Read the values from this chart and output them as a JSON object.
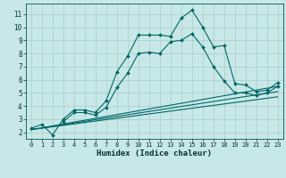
{
  "xlabel": "Humidex (Indice chaleur)",
  "bg_color": "#c8e8e8",
  "grid_color": "#aacccc",
  "line_color": "#006666",
  "xlim": [
    -0.5,
    23.5
  ],
  "ylim": [
    1.5,
    11.8
  ],
  "xticks": [
    0,
    1,
    2,
    3,
    4,
    5,
    6,
    7,
    8,
    9,
    10,
    11,
    12,
    13,
    14,
    15,
    16,
    17,
    18,
    19,
    20,
    21,
    22,
    23
  ],
  "yticks": [
    2,
    3,
    4,
    5,
    6,
    7,
    8,
    9,
    10,
    11
  ],
  "curve1_x": [
    0,
    1,
    2,
    3,
    4,
    5,
    6,
    7,
    8,
    9,
    10,
    11,
    12,
    13,
    14,
    15,
    16,
    17,
    18,
    19,
    20,
    21,
    22,
    23
  ],
  "curve1_y": [
    2.3,
    2.6,
    1.8,
    3.0,
    3.7,
    3.7,
    3.5,
    4.4,
    6.6,
    7.8,
    9.4,
    9.4,
    9.4,
    9.3,
    10.7,
    11.3,
    10.0,
    8.5,
    8.6,
    5.7,
    5.6,
    5.1,
    5.2,
    5.8
  ],
  "curve2_x": [
    3,
    4,
    5,
    6,
    7,
    8,
    9,
    10,
    11,
    12,
    13,
    14,
    15,
    16,
    17,
    18,
    19,
    20,
    21,
    22,
    23
  ],
  "curve2_y": [
    2.8,
    3.5,
    3.5,
    3.3,
    3.9,
    5.4,
    6.5,
    8.0,
    8.1,
    8.0,
    8.9,
    9.0,
    9.5,
    8.5,
    7.0,
    5.9,
    5.0,
    5.0,
    4.8,
    5.0,
    5.5
  ],
  "line1_x": [
    0,
    23
  ],
  "line1_y": [
    2.2,
    5.5
  ],
  "line2_x": [
    0,
    23
  ],
  "line2_y": [
    2.2,
    5.1
  ],
  "line3_x": [
    0,
    23
  ],
  "line3_y": [
    2.2,
    4.7
  ]
}
